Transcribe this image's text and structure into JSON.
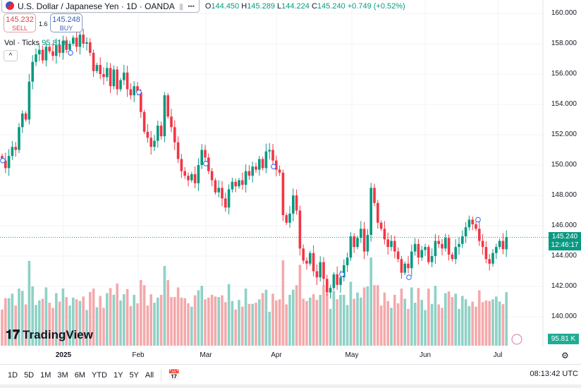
{
  "header": {
    "symbol": "U.S. Dollar / Japanese Yen · 1D · OANDA",
    "more": "•••",
    "ohlc": {
      "o_label": "O",
      "o": "144.450",
      "h_label": "H",
      "h": "145.289",
      "l_label": "L",
      "l": "144.224",
      "c_label": "C",
      "c": "145.240",
      "change": "+0.749 (+0.52%)"
    }
  },
  "trade": {
    "sell_price": "145.232",
    "sell_label": "SELL",
    "spread": "1.6",
    "buy_price": "145.248",
    "buy_label": "BUY"
  },
  "volume_legend": {
    "label": "Vol · Ticks",
    "value": "95.81 K"
  },
  "collapse_icon": "^",
  "logo": "TradingView",
  "price_axis": [
    "160.000",
    "158.000",
    "156.000",
    "154.000",
    "152.000",
    "150.000",
    "148.000",
    "146.000",
    "144.000",
    "142.000",
    "140.000"
  ],
  "last_price": {
    "price": "145.240",
    "countdown": "12:46:17"
  },
  "volume_badge": "95.81 K",
  "time_axis": [
    "2025",
    "Feb",
    "Mar",
    "Apr",
    "May",
    "Jun",
    "Jul"
  ],
  "ranges": [
    "1D",
    "5D",
    "1M",
    "3M",
    "6M",
    "YTD",
    "1Y",
    "5Y",
    "All"
  ],
  "clock": "08:13:42 UTC",
  "colors": {
    "up": "#089981",
    "down": "#f23645",
    "vol_up": "#8fd1c6",
    "vol_down": "#f4a9ab"
  },
  "chart_data": {
    "type": "candlestick",
    "ylim": [
      139,
      161
    ],
    "title": "U.S. Dollar / Japanese Yen · 1D · OANDA",
    "start_close": 150.6,
    "close": [
      150.3,
      149.8,
      150.6,
      151.2,
      151.0,
      152.5,
      153.4,
      153.0,
      155.5,
      156.8,
      157.3,
      157.6,
      156.9,
      157.8,
      157.5,
      157.2,
      157.9,
      157.4,
      158.2,
      157.6,
      158.0,
      158.4,
      157.8,
      158.6,
      158.0,
      158.1,
      157.4,
      156.2,
      156.6,
      156.0,
      155.8,
      156.4,
      155.2,
      156.3,
      155.0,
      155.6,
      156.1,
      155.0,
      154.6,
      155.2,
      154.8,
      153.5,
      152.2,
      151.8,
      151.2,
      151.6,
      152.6,
      151.9,
      154.6,
      153.2,
      152.5,
      151.5,
      150.4,
      149.6,
      149.3,
      149.0,
      149.4,
      148.8,
      150.0,
      151.0,
      150.5,
      149.6,
      149.0,
      148.2,
      148.5,
      147.8,
      147.2,
      148.4,
      148.9,
      148.6,
      149.0,
      148.7,
      149.6,
      149.3,
      149.9,
      149.7,
      150.4,
      149.8,
      150.9,
      151.0,
      150.3,
      149.7,
      149.5,
      146.7,
      146.2,
      146.8,
      148.0,
      147.0,
      144.5,
      143.7,
      143.5,
      144.2,
      143.0,
      142.6,
      143.6,
      142.5,
      141.6,
      141.9,
      142.8,
      142.1,
      142.6,
      143.4,
      143.9,
      145.3,
      144.6,
      145.2,
      145.8,
      144.3,
      145.4,
      148.5,
      147.5,
      146.2,
      145.8,
      145.1,
      144.6,
      145.0,
      144.3,
      143.8,
      142.9,
      143.5,
      143.2,
      144.3,
      144.8,
      143.9,
      144.4,
      144.6,
      143.6,
      144.0,
      145.0,
      144.8,
      144.5,
      145.2,
      144.1,
      143.8,
      144.6,
      144.8,
      145.3,
      145.9,
      146.4,
      146.1,
      145.8,
      145.0,
      144.6,
      143.8,
      143.5,
      144.2,
      144.6,
      145.0,
      144.45,
      145.24
    ]
  }
}
